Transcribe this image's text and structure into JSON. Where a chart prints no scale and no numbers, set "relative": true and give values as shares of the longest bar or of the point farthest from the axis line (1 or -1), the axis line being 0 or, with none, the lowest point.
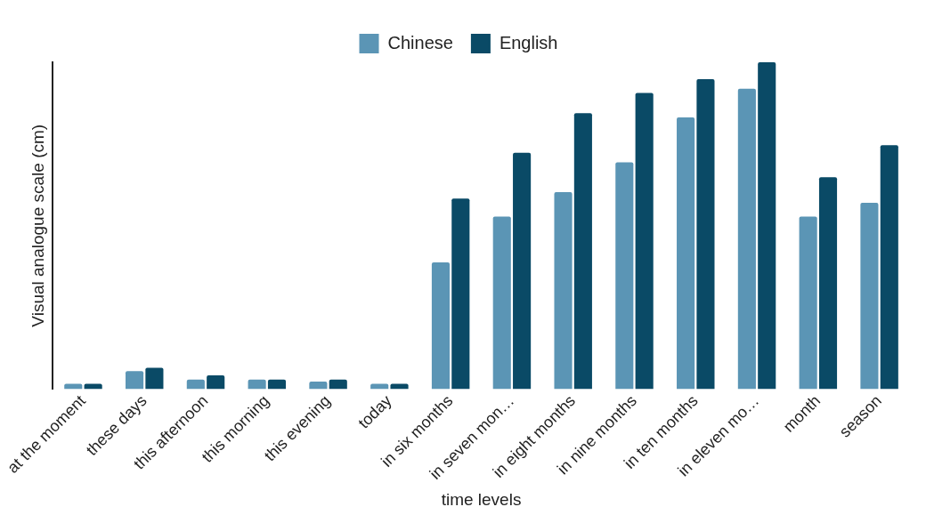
{
  "chart_data": {
    "type": "bar",
    "relative": true,
    "xlabel": "time levels",
    "ylabel": "Visual analogue scale (cm)",
    "legend": "top",
    "grid": false,
    "categories": [
      "at the moment",
      "these days",
      "this afternoon",
      "this morning",
      "this evening",
      "today",
      "in six months",
      "in seven mon…",
      "in eight months",
      "in nine months",
      "in ten months",
      "in eleven mo…",
      "month",
      "season"
    ],
    "series": [
      {
        "name": "Chinese",
        "color": "#5b95b5",
        "values": [
          0.016,
          0.055,
          0.029,
          0.029,
          0.023,
          0.016,
          0.388,
          0.528,
          0.603,
          0.694,
          0.831,
          0.919,
          0.528,
          0.57
        ]
      },
      {
        "name": "English",
        "color": "#0a4a66",
        "values": [
          0.016,
          0.065,
          0.042,
          0.029,
          0.029,
          0.016,
          0.583,
          0.723,
          0.844,
          0.906,
          0.948,
          1,
          0.648,
          0.746
        ]
      }
    ]
  }
}
